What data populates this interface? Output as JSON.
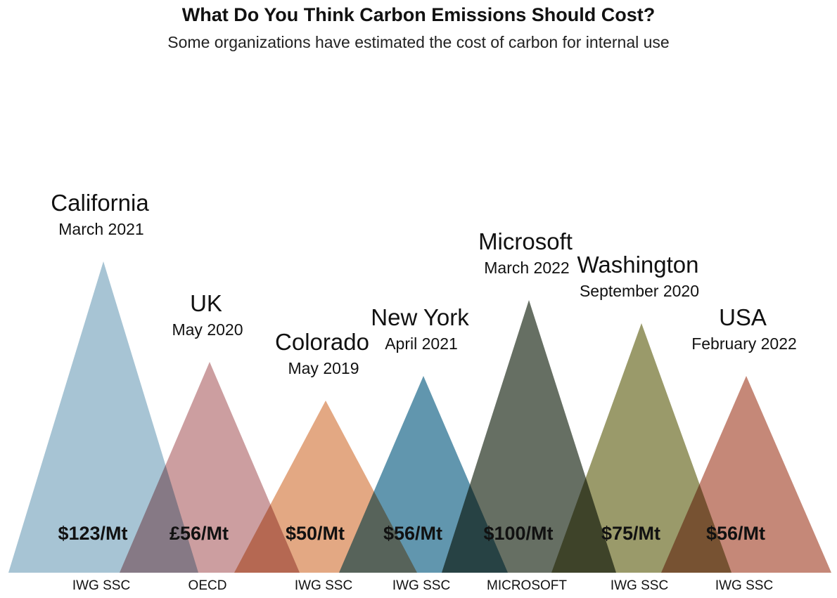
{
  "header": {
    "title": "What Do You Think Carbon Emissions Should Cost?",
    "subtitle": "Some organizations have estimated the cost of carbon for internal use"
  },
  "chart_data": {
    "type": "area",
    "title": "What Do You Think Carbon Emissions Should Cost?",
    "subtitle": "Some organizations have estimated the cost of carbon for internal use",
    "items": [
      {
        "name": "California",
        "date": "March 2021",
        "value": 123,
        "label": "$123/Mt",
        "source": "IWG SSC",
        "color": "#a7c4d4"
      },
      {
        "name": "UK",
        "date": "May 2020",
        "value": 56,
        "label": "£56/Mt",
        "source": "OECD",
        "color": "#cc9ea0"
      },
      {
        "name": "Colorado",
        "date": "May 2019",
        "value": 50,
        "label": "$50/Mt",
        "source": "IWG SSC",
        "color": "#e3a883"
      },
      {
        "name": "New York",
        "date": "April 2021",
        "value": 56,
        "label": "$56/Mt",
        "source": "IWG SSC",
        "color": "#6196ae"
      },
      {
        "name": "Microsoft",
        "date": "March 2022",
        "value": 100,
        "label": "$100/Mt",
        "source": "MICROSOFT",
        "color": "#666f63"
      },
      {
        "name": "Washington",
        "date": "September 2020",
        "value": 75,
        "label": "$75/Mt",
        "source": "IWG SSC",
        "color": "#9a9a6a"
      },
      {
        "name": "USA",
        "date": "February 2022",
        "value": 56,
        "label": "$56/Mt",
        "source": "IWG SSC",
        "color": "#c58878"
      }
    ]
  }
}
